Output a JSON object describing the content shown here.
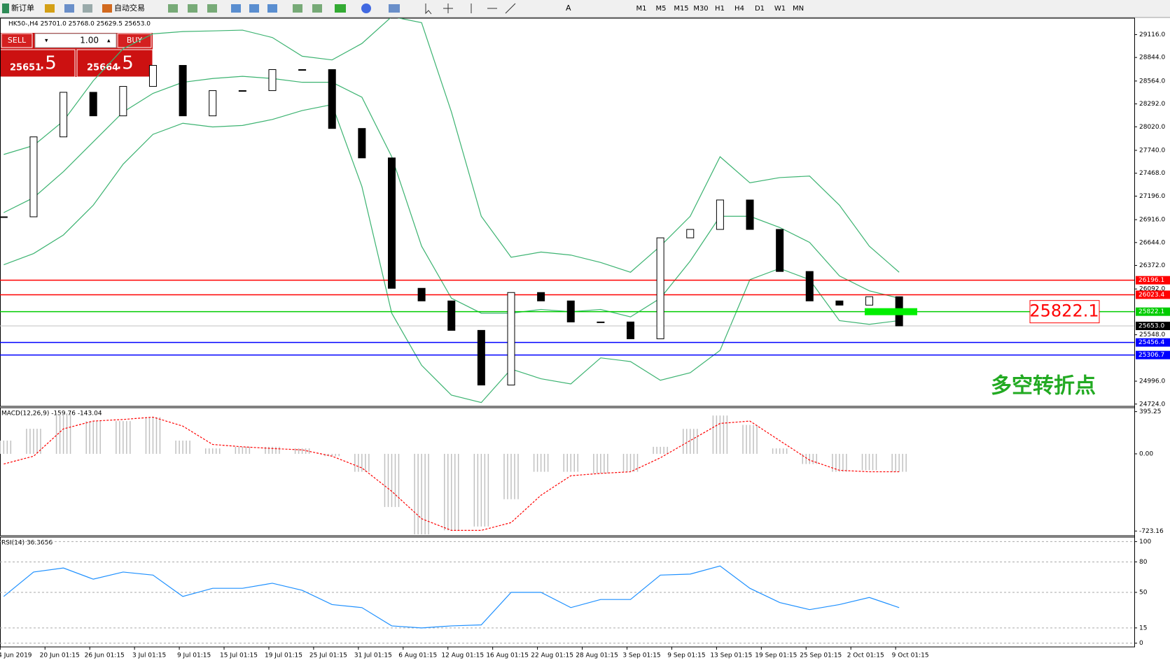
{
  "toolbar": {
    "new_order": "新订单",
    "auto_trade": "自动交易",
    "timeframes": [
      "M1",
      "M5",
      "M15",
      "M30",
      "H1",
      "H4",
      "D1",
      "W1",
      "MN"
    ]
  },
  "trade_panel": {
    "sell": "SELL",
    "buy": "BUY",
    "lot": "1.00",
    "sell_main": "25651",
    "sell_frac": ".5",
    "buy_main": "25664",
    "buy_frac": ".5"
  },
  "chart_data": [
    {
      "type": "candlestick",
      "title": "HK50-,H4  25701.0 25768.0 25629.5 25653.0",
      "close": [
        26950,
        27900,
        28430,
        28150,
        28500,
        28750,
        28150,
        28450,
        28450,
        28700,
        28700,
        28000,
        27650,
        26100,
        25950,
        25600,
        24950,
        26050,
        25950,
        25700,
        25700,
        25500,
        26700,
        26800,
        27150,
        26800,
        26300,
        25950,
        25900,
        26000,
        25653
      ],
      "bollinger": {
        "color": "#3cb371",
        "upper": [
          27691,
          27797,
          28089,
          28567,
          28948,
          29125,
          29152,
          29160,
          29169,
          29081,
          28859,
          28815,
          29010,
          29329,
          29258,
          28195,
          26956,
          26469,
          26531,
          26495,
          26407,
          26291,
          26601,
          26956,
          27664,
          27354,
          27416,
          27434,
          27088,
          26601,
          26291
        ],
        "middle": [
          27000,
          27177,
          27487,
          27841,
          28195,
          28417,
          28549,
          28594,
          28620,
          28594,
          28549,
          28549,
          28372,
          27664,
          26601,
          25982,
          25804,
          25804,
          25849,
          25822,
          25849,
          25760,
          25982,
          26424,
          26956,
          26956,
          26823,
          26646,
          26247,
          26070,
          25982
        ],
        "lower": [
          26380,
          26513,
          26734,
          27088,
          27575,
          27930,
          28062,
          28018,
          28036,
          28107,
          28213,
          28284,
          27310,
          25804,
          25185,
          24830,
          24742,
          25140,
          25025,
          24963,
          25273,
          25229,
          25007,
          25096,
          25362,
          26203,
          26336,
          26203,
          25716,
          25672,
          25716
        ]
      },
      "ylim": [
        24697,
        29311
      ],
      "yticks": [
        {
          "value": 29116,
          "label": "29116.0"
        },
        {
          "value": 28844,
          "label": "28844.0"
        },
        {
          "value": 28564,
          "label": "28564.0"
        },
        {
          "value": 28292,
          "label": "28292.0"
        },
        {
          "value": 28020,
          "label": "28020.0"
        },
        {
          "value": 27740,
          "label": "27740.0"
        },
        {
          "value": 27468,
          "label": "27468.0"
        },
        {
          "value": 27196,
          "label": "27196.0"
        },
        {
          "value": 26916,
          "label": "26916.0"
        },
        {
          "value": 26644,
          "label": "26644.0"
        },
        {
          "value": 26372,
          "label": "26372.0"
        },
        {
          "value": 26092,
          "label": "26092.0"
        },
        {
          "value": 25548,
          "label": "25548.0"
        },
        {
          "value": 24996,
          "label": "24996.0"
        },
        {
          "value": 24724,
          "label": "24724.0"
        }
      ],
      "levels": [
        {
          "value": 26196.1,
          "color": "#ff0000"
        },
        {
          "value": 26023.4,
          "color": "#ff0000"
        },
        {
          "value": 25822.1,
          "color": "#00cc00"
        },
        {
          "value": 25653,
          "label": "25653.0",
          "color": "#000000"
        },
        {
          "value": 25456.4,
          "color": "#0000ff"
        },
        {
          "value": 25306.7,
          "color": "#0000ff"
        }
      ],
      "callout": 25822.1,
      "note": "多空转折点",
      "date_labels": [
        "4 Jun 2019",
        "20 Jun 01:15",
        "26 Jun 01:15",
        "3 Jul 01:15",
        "9 Jul 01:15",
        "15 Jul 01:15",
        "19 Jul 01:15",
        "25 Jul 01:15",
        "31 Jul 01:15",
        "6 Aug 01:15",
        "12 Aug 01:15",
        "16 Aug 01:15",
        "22 Aug 01:15",
        "28 Aug 01:15",
        "3 Sep 01:15",
        "9 Sep 01:15",
        "13 Sep 01:15",
        "19 Sep 01:15",
        "25 Sep 01:15",
        "2 Oct 01:15",
        "9 Oct 01:15"
      ]
    },
    {
      "type": "macd",
      "title": "MACD(12,26,9) -159.76 -143.04",
      "color": "#c0c0c0",
      "signal_color": "#ff0000",
      "values": [
        124,
        235,
        380,
        307,
        307,
        344,
        124,
        51,
        66,
        66,
        51,
        -22,
        -168,
        -498,
        -754,
        -717,
        -681,
        -425,
        -168,
        -168,
        -183,
        -168,
        66,
        234,
        359,
        271,
        51,
        -95,
        -168,
        -154,
        -168
      ],
      "signal": [
        -95,
        -22,
        234,
        307,
        322,
        344,
        260,
        88,
        66,
        50,
        37,
        -22,
        -132,
        -351,
        -608,
        -717,
        -717,
        -644,
        -388,
        -205,
        -183,
        -168,
        -37,
        124,
        285,
        307,
        124,
        -59,
        -154,
        -168,
        -168
      ],
      "ylim": [
        -767,
        432
      ],
      "yticks": [
        395.25,
        {
          "value": 0,
          "label": "0.00"
        },
        -723.16
      ]
    },
    {
      "type": "line",
      "title": "RSI(14) 36.3656",
      "color": "#1e90ff",
      "values": [
        46,
        70,
        74,
        63,
        70,
        67,
        46,
        54,
        54,
        59,
        52,
        38,
        35,
        17,
        15,
        17,
        18,
        50,
        50,
        35,
        43,
        43,
        67,
        68,
        76,
        54,
        40,
        33,
        38,
        45,
        35
      ],
      "ylim": [
        -3.7,
        104.4
      ],
      "yticks": [
        100,
        80,
        50,
        15,
        0
      ],
      "grid": true
    }
  ]
}
